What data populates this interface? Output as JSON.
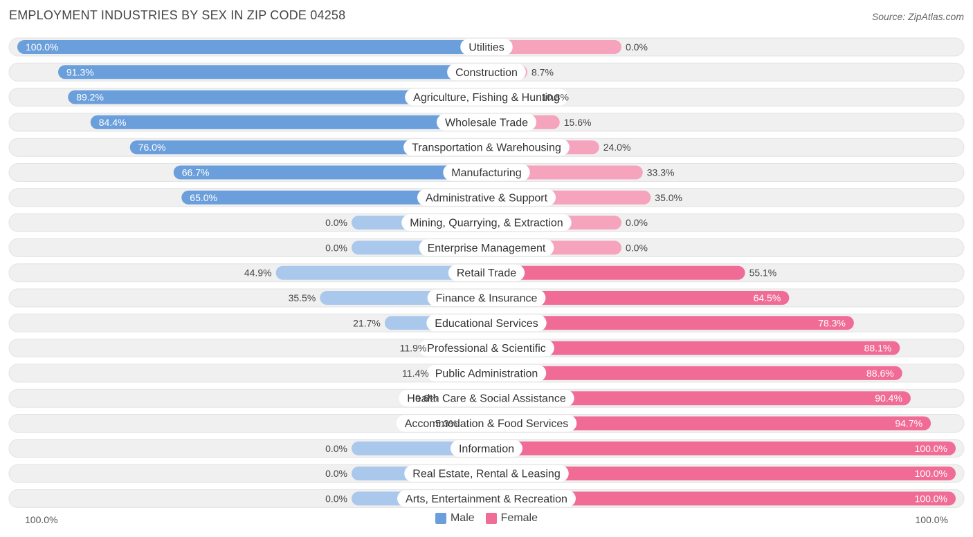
{
  "title": "EMPLOYMENT INDUSTRIES BY SEX IN ZIP CODE 04258",
  "source": "Source: ZipAtlas.com",
  "colors": {
    "male": "#6a9fdc",
    "male_light": "#a9c8ec",
    "female": "#f06b95",
    "female_light": "#f6a3bd",
    "row_bg": "#f0f0f0"
  },
  "chart_data": {
    "type": "bar",
    "orientation": "diverging-horizontal",
    "categories": [
      "Utilities",
      "Construction",
      "Agriculture, Fishing & Hunting",
      "Wholesale Trade",
      "Transportation & Warehousing",
      "Manufacturing",
      "Administrative & Support",
      "Mining, Quarrying, & Extraction",
      "Enterprise Management",
      "Retail Trade",
      "Finance & Insurance",
      "Educational Services",
      "Professional & Scientific",
      "Public Administration",
      "Health Care & Social Assistance",
      "Accommodation & Food Services",
      "Information",
      "Real Estate, Rental & Leasing",
      "Arts, Entertainment & Recreation"
    ],
    "series": [
      {
        "name": "Male",
        "values": [
          100.0,
          91.3,
          89.2,
          84.4,
          76.0,
          66.7,
          65.0,
          0.0,
          0.0,
          44.9,
          35.5,
          21.7,
          11.9,
          11.4,
          9.6,
          5.3,
          0.0,
          0.0,
          0.0
        ],
        "labels": [
          "100.0%",
          "91.3%",
          "89.2%",
          "84.4%",
          "76.0%",
          "66.7%",
          "65.0%",
          "0.0%",
          "0.0%",
          "44.9%",
          "35.5%",
          "21.7%",
          "11.9%",
          "11.4%",
          "9.6%",
          "5.3%",
          "0.0%",
          "0.0%",
          "0.0%"
        ]
      },
      {
        "name": "Female",
        "values": [
          0.0,
          8.7,
          10.8,
          15.6,
          24.0,
          33.3,
          35.0,
          0.0,
          0.0,
          55.1,
          64.5,
          78.3,
          88.1,
          88.6,
          90.4,
          94.7,
          100.0,
          100.0,
          100.0
        ],
        "labels": [
          "0.0%",
          "8.7%",
          "10.8%",
          "15.6%",
          "24.0%",
          "33.3%",
          "35.0%",
          "0.0%",
          "0.0%",
          "55.1%",
          "64.5%",
          "78.3%",
          "88.1%",
          "88.6%",
          "90.4%",
          "94.7%",
          "100.0%",
          "100.0%",
          "100.0%"
        ]
      }
    ],
    "xlim": [
      -100,
      100
    ],
    "axis_left_label": "100.0%",
    "axis_right_label": "100.0%",
    "legend": [
      "Male",
      "Female"
    ]
  }
}
